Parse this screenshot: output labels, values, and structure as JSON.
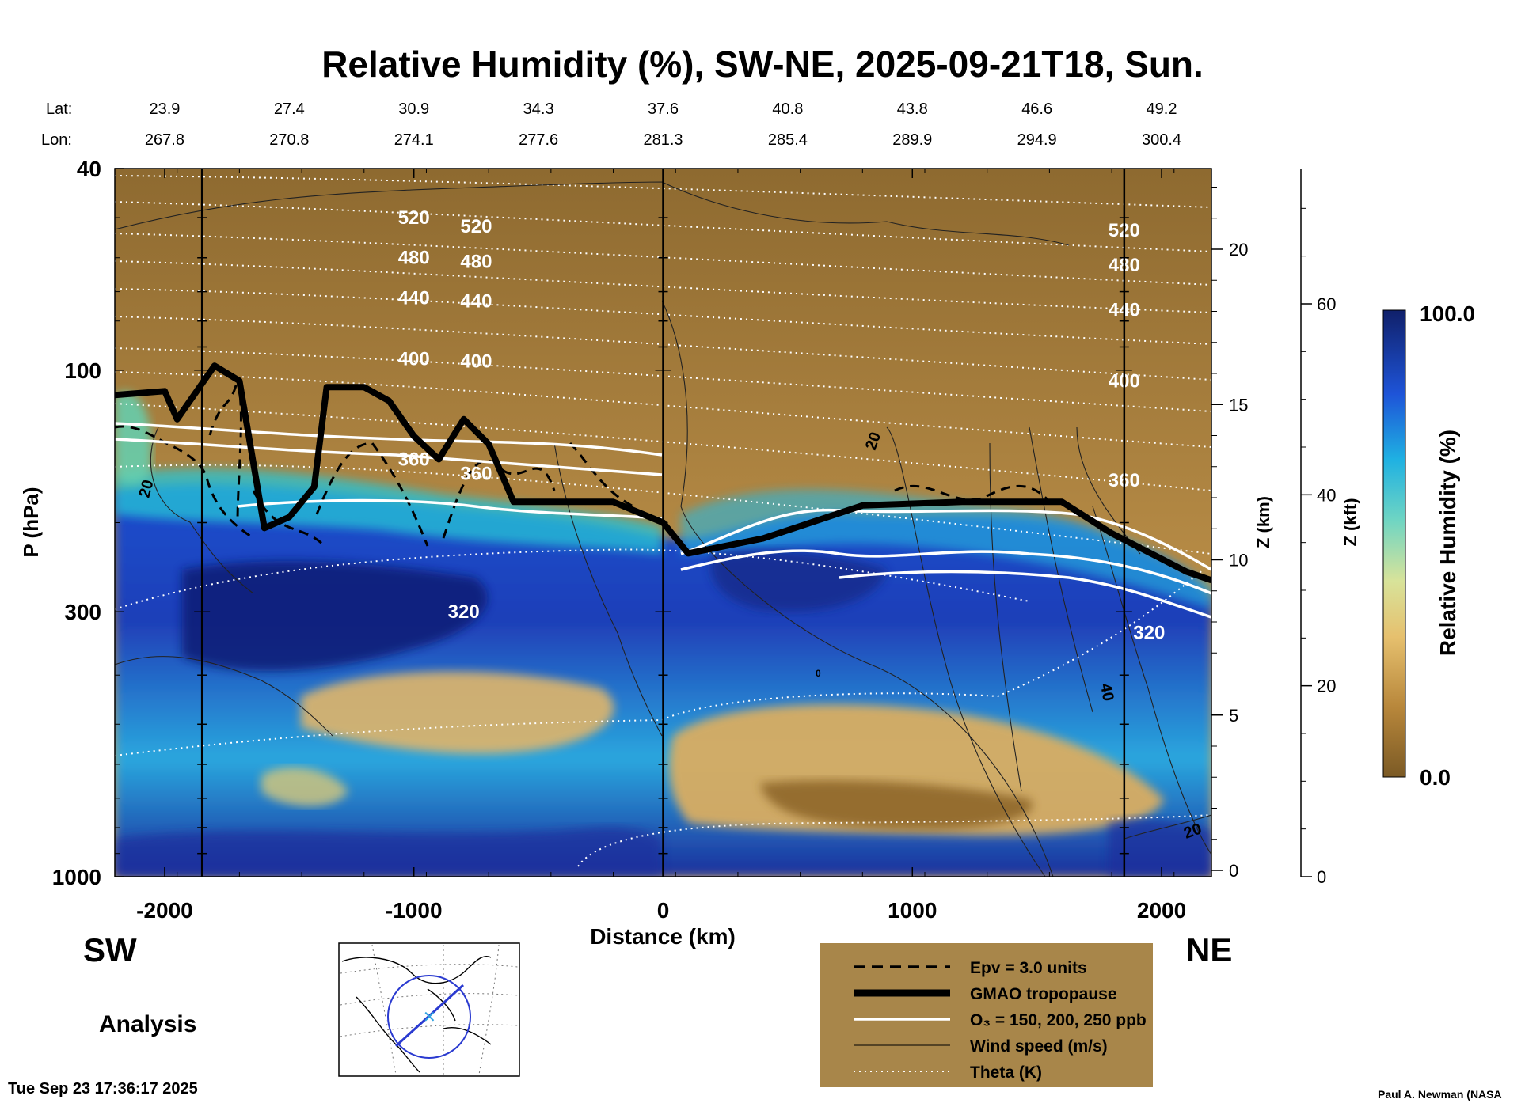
{
  "chart_data": {
    "type": "heatmap",
    "title": "Relative Humidity (%), SW-NE, 2025-09-21T18, Sun.",
    "xlabel": "Distance (km)",
    "ylabel": "P (hPa)",
    "xlim": [
      -2200,
      2200
    ],
    "x_ticks": [
      -2000,
      -1000,
      0,
      1000,
      2000
    ],
    "x_tick_labels": [
      "-2000",
      "-1000",
      "0",
      "1000",
      "2000"
    ],
    "ylim": [
      1000,
      40
    ],
    "y_scale": "log",
    "y_ticks": [
      40,
      100,
      300,
      1000
    ],
    "y_tick_labels": [
      "40",
      "100",
      "300",
      "1000"
    ],
    "z_km_axis": {
      "label": "Z (km)",
      "ticks": [
        0,
        5,
        10,
        15,
        20
      ],
      "tick_labels": [
        "0",
        "5",
        "10",
        "15",
        "20"
      ]
    },
    "z_kft_axis": {
      "label": "Z (kft)",
      "ticks": [
        0,
        20,
        40,
        60
      ],
      "tick_labels": [
        "0",
        "20",
        "40",
        "60"
      ]
    },
    "lat_label": "Lat:",
    "lon_label": "Lon:",
    "lat_values": [
      "23.9",
      "27.4",
      "30.9",
      "34.3",
      "37.6",
      "40.8",
      "43.8",
      "46.6",
      "49.2"
    ],
    "lon_values": [
      "267.8",
      "270.8",
      "274.1",
      "277.6",
      "281.3",
      "285.4",
      "289.9",
      "294.9",
      "300.4"
    ],
    "latlon_x_km": [
      -2000,
      -1500,
      -1000,
      -500,
      0,
      500,
      1000,
      1500,
      2000
    ],
    "vertical_markers_km": [
      -1850,
      0,
      1850
    ],
    "colorbar": {
      "label": "Relative Humidity (%)",
      "min": 0.0,
      "max": 100.0,
      "min_label": "0.0",
      "max_label": "100.0"
    },
    "theta_contours": [
      {
        "value": 520,
        "label": "520",
        "pressure_hpa": [
          50,
          52,
          53
        ]
      },
      {
        "value": 480,
        "label": "480",
        "pressure_hpa": [
          60,
          61,
          62
        ]
      },
      {
        "value": 440,
        "label": "440",
        "pressure_hpa": [
          72,
          73,
          76
        ]
      },
      {
        "value": 400,
        "label": "400",
        "pressure_hpa": [
          95,
          96,
          105
        ]
      },
      {
        "value": 360,
        "label": "360",
        "pressure_hpa": [
          150,
          160,
          165
        ]
      },
      {
        "value": 320,
        "label": "320",
        "pressure_hpa": [
          300,
          330,
          500
        ]
      }
    ],
    "tropopause_hpa": {
      "x_km": [
        -2200,
        -2000,
        -1950,
        -1800,
        -1700,
        -1600,
        -1500,
        -1400,
        -1350,
        -1200,
        -1100,
        -1000,
        -900,
        -800,
        -700,
        -600,
        -400,
        -200,
        0,
        100,
        400,
        800,
        1200,
        1600,
        1800,
        2100,
        2200
      ],
      "p_hpa": [
        112,
        110,
        125,
        98,
        105,
        205,
        195,
        170,
        108,
        108,
        115,
        135,
        150,
        125,
        140,
        182,
        182,
        182,
        200,
        230,
        215,
        185,
        182,
        182,
        210,
        250,
        260
      ]
    },
    "wind_contour_labels": [
      "20",
      "20",
      "40",
      "20",
      "0"
    ],
    "region_labels": {
      "left": "SW",
      "right": "NE"
    },
    "product_label": "Analysis",
    "legend": [
      {
        "style": "dashed",
        "label": "Epv = 3.0 units"
      },
      {
        "style": "thick",
        "label": "GMAO tropopause"
      },
      {
        "style": "white",
        "label": "O₃ = 150, 200, 250 ppb"
      },
      {
        "style": "thin",
        "label": "Wind speed (m/s)"
      },
      {
        "style": "dotted",
        "label": "Theta (K)"
      }
    ],
    "timestamp": "Tue Sep 23 17:36:17 2025",
    "credit": "Paul A. Newman (NASA"
  }
}
